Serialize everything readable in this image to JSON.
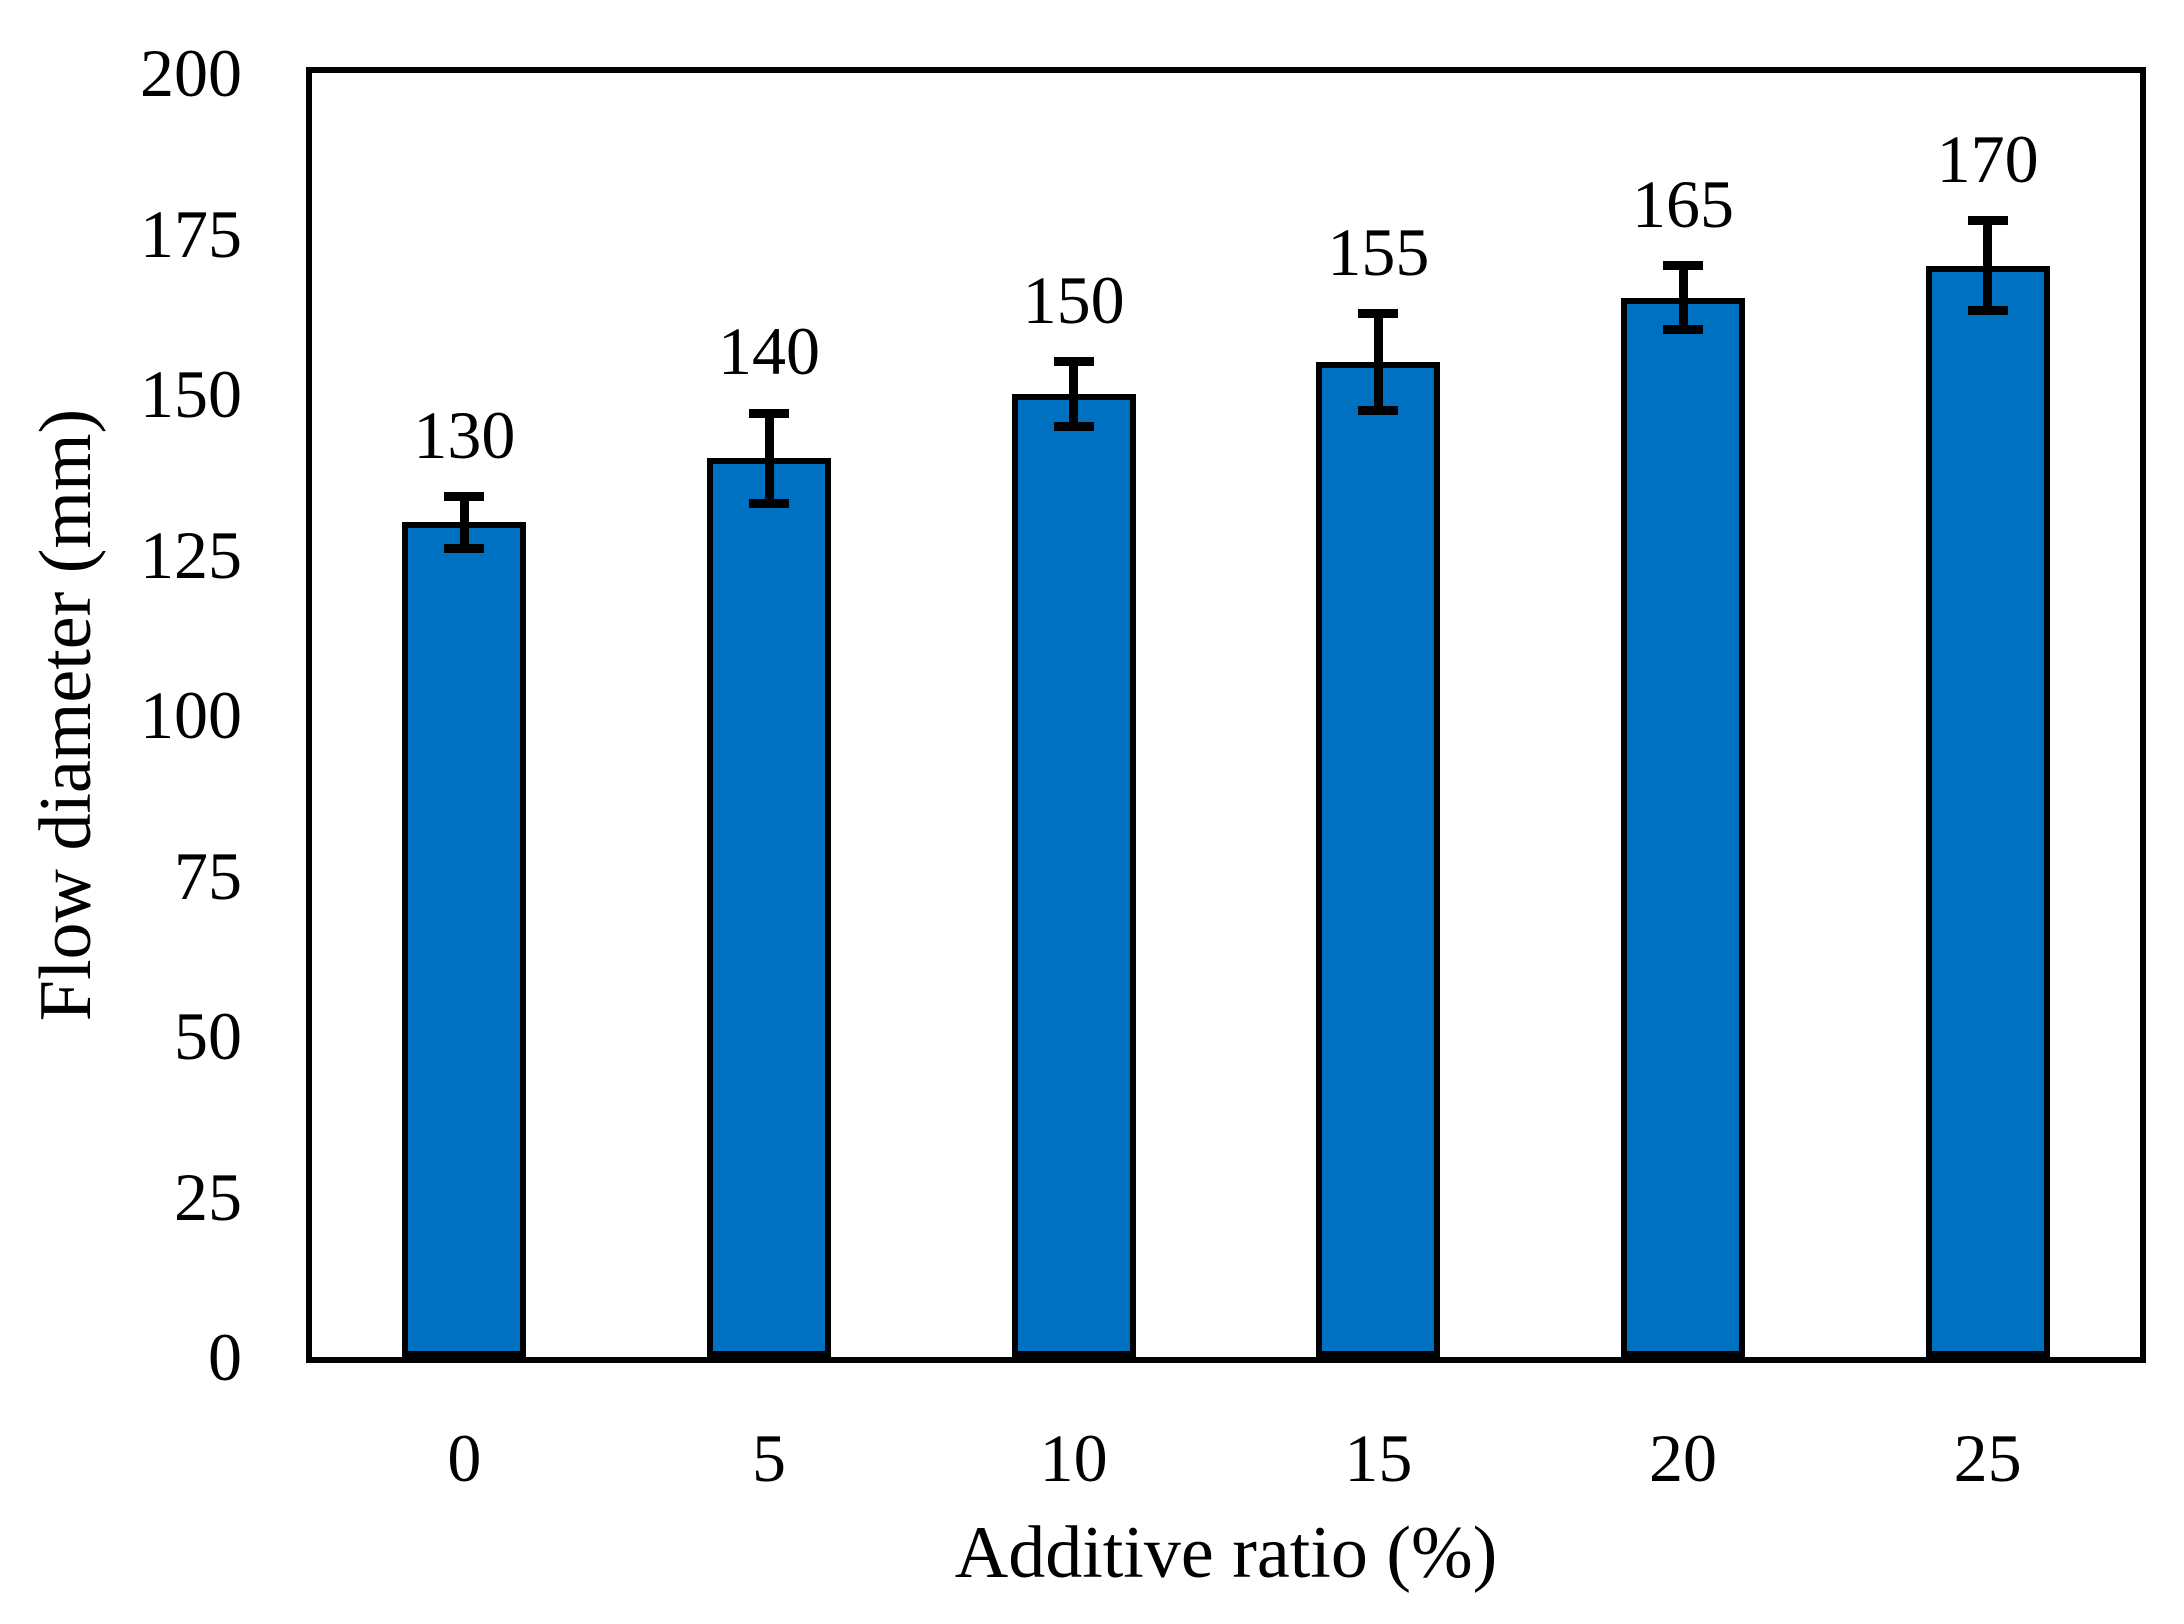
{
  "chart_data": {
    "type": "bar",
    "title": "",
    "xlabel": "Additive ratio (%)",
    "ylabel": "Flow diameter (mm)",
    "categories": [
      "0",
      "5",
      "10",
      "15",
      "20",
      "25"
    ],
    "values": [
      130,
      140,
      150,
      155,
      165,
      170
    ],
    "errors": [
      4,
      7,
      5,
      7.5,
      5,
      7
    ],
    "data_labels": [
      "130",
      "140",
      "150",
      "155",
      "165",
      "170"
    ],
    "ylim": [
      0,
      200
    ],
    "ytick_interval": 25,
    "yticks": [
      0,
      25,
      50,
      75,
      100,
      125,
      150,
      175,
      200
    ],
    "bar_color": "#0070C0",
    "bar_border_color": "#000000",
    "axis_color": "#000000",
    "background_color": "#FFFFFF",
    "grid": false,
    "legend": false
  }
}
